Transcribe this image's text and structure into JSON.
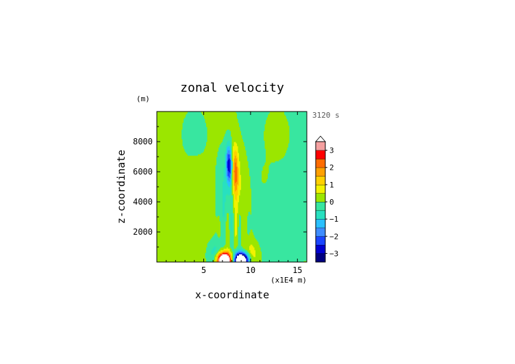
{
  "chart_data": {
    "type": "heatmap",
    "title": "zonal velocity",
    "time_label": "3120 s",
    "xlabel": "x-coordinate",
    "ylabel": "z-coordinate",
    "x_unit": "(x1E4 m)",
    "y_unit": "(m)",
    "xlim": [
      0,
      16
    ],
    "ylim": [
      0,
      10000
    ],
    "x_ticks": [
      5,
      10,
      15
    ],
    "x_tick_labels": [
      "5",
      "10",
      "15"
    ],
    "y_ticks": [
      2000,
      4000,
      6000,
      8000
    ],
    "y_tick_labels": [
      "2000",
      "4000",
      "6000",
      "8000"
    ],
    "colorbar": {
      "min": -3.5,
      "max": 3.5,
      "step": 0.5,
      "ticks": [
        3,
        2,
        1,
        0,
        -1,
        -2,
        -3
      ],
      "tick_labels": [
        "3",
        "2",
        "1",
        "0",
        "−1",
        "−2",
        "−3"
      ],
      "extend": "max",
      "colors": [
        "#000080",
        "#0000d0",
        "#1a45ff",
        "#3e8dff",
        "#2ac0ff",
        "#28e0c0",
        "#38e6a0",
        "#9be600",
        "#f2f200",
        "#ffd000",
        "#ffa000",
        "#ff6c00",
        "#ff0000",
        "#f5a0a0"
      ]
    },
    "field_features": [
      {
        "label": "strong positive lobe",
        "x": 7.2,
        "z": 150,
        "value": 3.5
      },
      {
        "label": "strong negative lobe",
        "x": 9.0,
        "z": 150,
        "value": -3.5
      },
      {
        "label": "positive streak",
        "x": 8.1,
        "z": 6500,
        "value": 2
      },
      {
        "label": "negative streak",
        "x": 7.8,
        "z": 6500,
        "value": -2.5
      },
      {
        "label": "negative plume",
        "x": 7.0,
        "z": 5000,
        "value": -0.8
      },
      {
        "label": "positive plume",
        "x": 9.2,
        "z": 5000,
        "value": 0.7
      },
      {
        "label": "background left",
        "x": 3.0,
        "z": 5000,
        "value": 0.25
      },
      {
        "label": "background right",
        "x": 13.0,
        "z": 5000,
        "value": -0.25
      }
    ]
  }
}
